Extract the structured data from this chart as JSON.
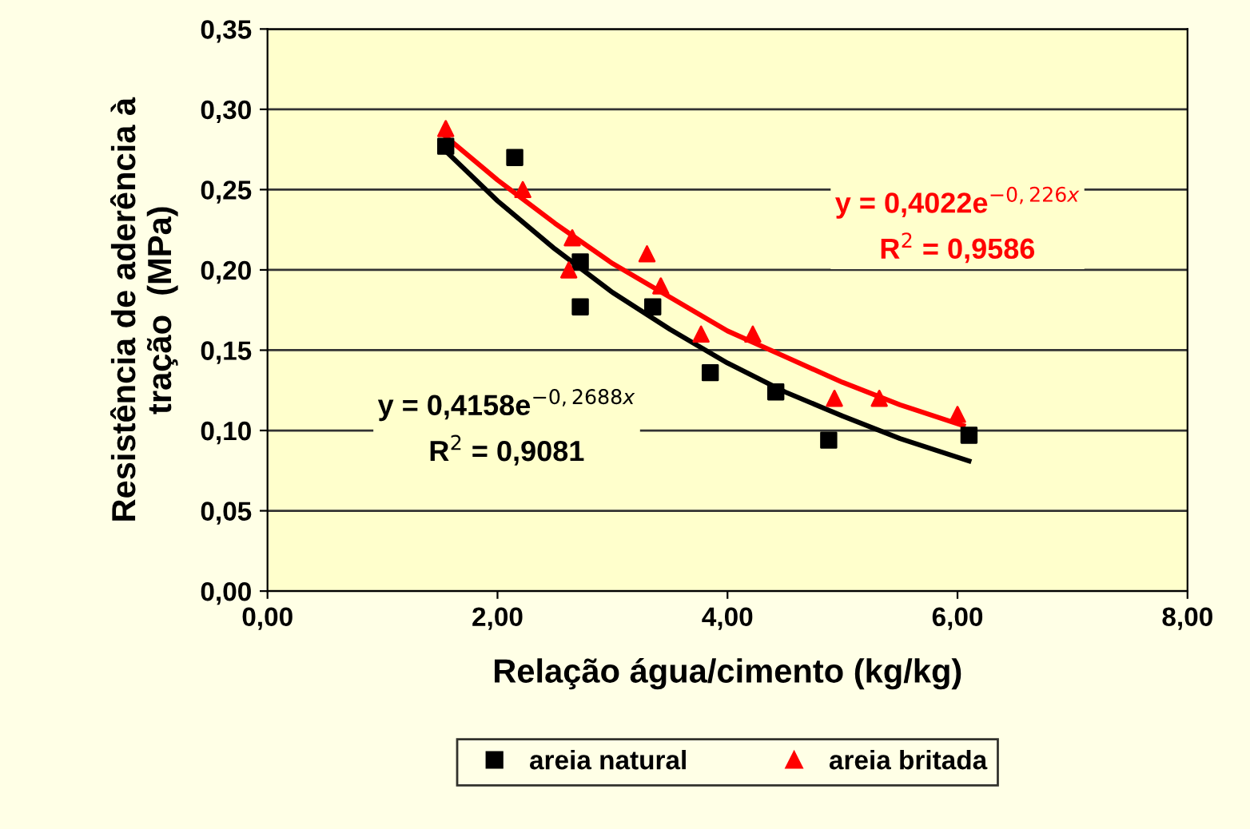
{
  "chart_data": {
    "type": "scatter",
    "xlabel": "Relação água/cimento (kg/kg)",
    "ylabel": "Resistência de aderência à\ntração  (MPa)",
    "xlim": [
      0,
      8
    ],
    "ylim": [
      0,
      0.35
    ],
    "xticks": [
      {
        "value": 0,
        "label": "0,00"
      },
      {
        "value": 2,
        "label": "2,00"
      },
      {
        "value": 4,
        "label": "4,00"
      },
      {
        "value": 6,
        "label": "6,00"
      },
      {
        "value": 8,
        "label": "8,00"
      }
    ],
    "yticks": [
      {
        "value": 0,
        "label": "0,00"
      },
      {
        "value": 0.05,
        "label": "0,05"
      },
      {
        "value": 0.1,
        "label": "0,10"
      },
      {
        "value": 0.15,
        "label": "0,15"
      },
      {
        "value": 0.2,
        "label": "0,20"
      },
      {
        "value": 0.25,
        "label": "0,25"
      },
      {
        "value": 0.3,
        "label": "0,30"
      },
      {
        "value": 0.35,
        "label": "0,35"
      }
    ],
    "grid": "y",
    "legend": "bottom",
    "series": [
      {
        "name": "areia natural",
        "marker": "square",
        "color": "#000000",
        "x": [
          1.55,
          2.15,
          2.72,
          2.72,
          3.35,
          3.85,
          4.42,
          4.88,
          6.1
        ],
        "values": [
          0.277,
          0.27,
          0.205,
          0.177,
          0.177,
          0.136,
          0.124,
          0.094,
          0.097
        ]
      },
      {
        "name": "areia britada",
        "marker": "triangle",
        "color": "#ff0000",
        "x": [
          1.55,
          2.22,
          2.62,
          2.65,
          3.3,
          3.42,
          3.77,
          4.22,
          4.93,
          5.32,
          6.0
        ],
        "values": [
          0.288,
          0.25,
          0.2,
          0.22,
          0.21,
          0.19,
          0.16,
          0.16,
          0.12,
          0.12,
          0.11
        ]
      },
      {
        "type": "line",
        "color": "#000000",
        "x": [
          1.55,
          2.0,
          2.5,
          3.0,
          3.5,
          4.0,
          4.5,
          5.0,
          5.5,
          6.1
        ],
        "values": [
          0.274,
          0.243,
          0.213,
          0.186,
          0.163,
          0.142,
          0.124,
          0.109,
          0.095,
          0.081
        ]
      },
      {
        "type": "line",
        "color": "#ff0000",
        "x": [
          1.55,
          2.0,
          2.5,
          3.0,
          3.5,
          4.0,
          4.5,
          5.0,
          5.5,
          6.05
        ],
        "values": [
          0.283,
          0.256,
          0.229,
          0.204,
          0.183,
          0.162,
          0.146,
          0.13,
          0.116,
          0.103
        ]
      }
    ],
    "annotations": [
      "y = 0,4158e$^{−0,2688x}$\nR$^{2}$ = 0,9081",
      "y = 0,4022e$^{−0,226x}$\nR$^{2}$ = 0,9586"
    ]
  }
}
